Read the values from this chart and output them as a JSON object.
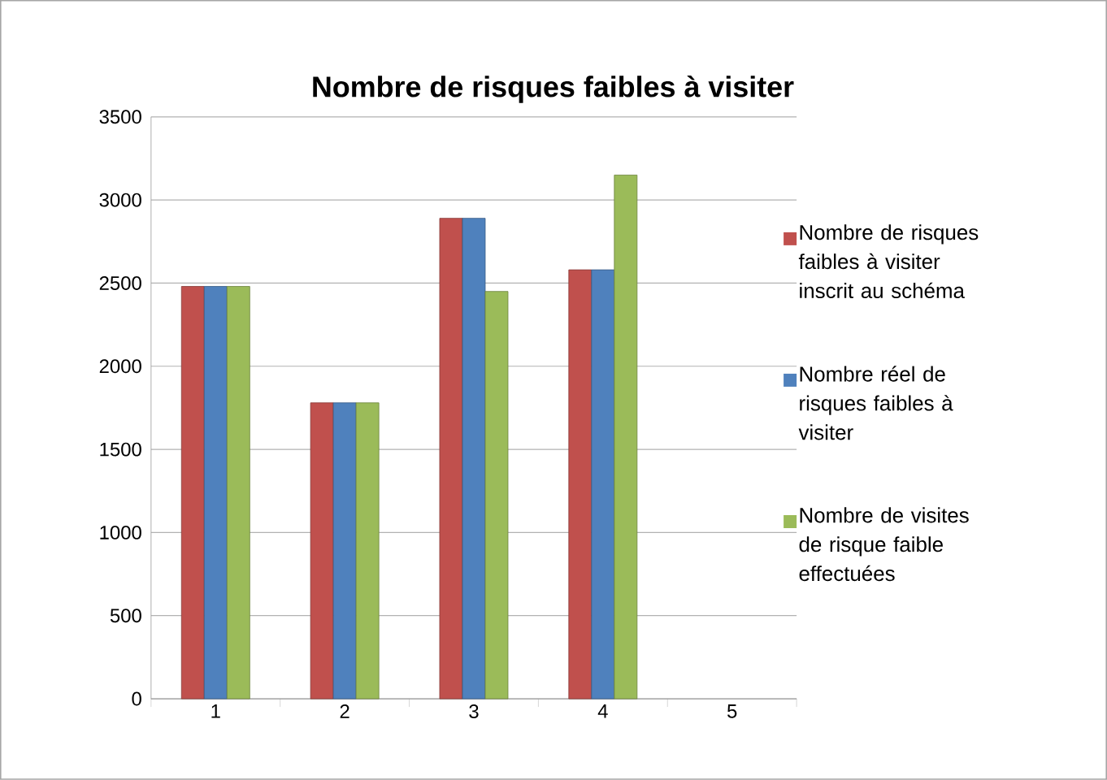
{
  "chart_data": {
    "type": "bar",
    "title": "Nombre de risques faibles à visiter",
    "categories": [
      "1",
      "2",
      "3",
      "4",
      "5"
    ],
    "series": [
      {
        "name": "Nombre de risques faibles à visiter inscrit au schéma",
        "color": "#c0504d",
        "values": [
          2480,
          1780,
          2890,
          2580,
          null
        ]
      },
      {
        "name": "Nombre réel de risques faibles à visiter",
        "color": "#4f81bd",
        "values": [
          2480,
          1780,
          2890,
          2580,
          null
        ]
      },
      {
        "name": "Nombre de visites de risque faible effectuées",
        "color": "#9bbb59",
        "values": [
          2480,
          1780,
          2450,
          3150,
          null
        ]
      }
    ],
    "ylim": [
      0,
      3500
    ],
    "yticks": [
      0,
      500,
      1000,
      1500,
      2000,
      2500,
      3000,
      3500
    ],
    "grid": "y",
    "legend": "right"
  }
}
